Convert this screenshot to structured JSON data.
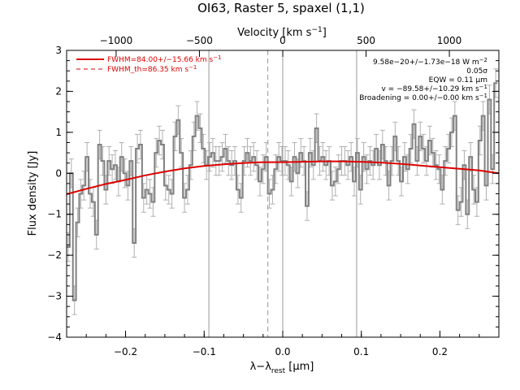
{
  "chart_data": {
    "type": "line",
    "title": "OI63, Raster 5, spaxel (1,1)",
    "xlabel": "λ−λ",
    "xlabel_sub": "rest",
    "xlabel_unit": " [μm]",
    "ylabel": "Flux density [Jy]",
    "top_axis_label": "Velocity [km s",
    "top_axis_label_sup": "−1",
    "top_axis_label_end": "]",
    "xlim": [
      -0.275,
      0.275
    ],
    "ylim": [
      -4,
      3
    ],
    "x_ticks": [
      {
        "value": -0.2,
        "label": "−0.2"
      },
      {
        "value": -0.1,
        "label": "−0.1"
      },
      {
        "value": 0.0,
        "label": "0.0"
      },
      {
        "value": 0.1,
        "label": "0.1"
      },
      {
        "value": 0.2,
        "label": "0.2"
      }
    ],
    "y_ticks": [
      {
        "value": -4,
        "label": "−4"
      },
      {
        "value": -3,
        "label": "−3"
      },
      {
        "value": -2,
        "label": "−2"
      },
      {
        "value": -1,
        "label": "−1"
      },
      {
        "value": 0,
        "label": "0"
      },
      {
        "value": 1,
        "label": "1"
      },
      {
        "value": 2,
        "label": "2"
      },
      {
        "value": 3,
        "label": "3"
      }
    ],
    "velocity_ticks": [
      {
        "x": -0.212,
        "label": "−1000"
      },
      {
        "x": -0.106,
        "label": "−500"
      },
      {
        "x": 0.0,
        "label": "0"
      },
      {
        "x": 0.106,
        "label": "500"
      },
      {
        "x": 0.212,
        "label": "1000"
      }
    ],
    "vertical_lines": [
      {
        "x": -0.094,
        "style": "solid",
        "color": "#999999"
      },
      {
        "x": -0.019,
        "style": "dashed",
        "color": "#999999"
      },
      {
        "x": 0.0,
        "style": "solid",
        "color": "#999999"
      },
      {
        "x": 0.094,
        "style": "solid",
        "color": "#999999"
      }
    ],
    "series": [
      {
        "kind": "step",
        "color": "#808080",
        "x": [
          -0.273,
          -0.269,
          -0.265,
          -0.261,
          -0.257,
          -0.253,
          -0.249,
          -0.245,
          -0.241,
          -0.237,
          -0.233,
          -0.229,
          -0.225,
          -0.221,
          -0.217,
          -0.213,
          -0.209,
          -0.205,
          -0.201,
          -0.197,
          -0.193,
          -0.189,
          -0.185,
          -0.181,
          -0.177,
          -0.173,
          -0.169,
          -0.165,
          -0.161,
          -0.157,
          -0.153,
          -0.149,
          -0.145,
          -0.141,
          -0.137,
          -0.133,
          -0.129,
          -0.125,
          -0.121,
          -0.117,
          -0.113,
          -0.109,
          -0.105,
          -0.101,
          -0.097,
          -0.093,
          -0.089,
          -0.085,
          -0.081,
          -0.077,
          -0.073,
          -0.069,
          -0.065,
          -0.061,
          -0.057,
          -0.053,
          -0.049,
          -0.045,
          -0.041,
          -0.037,
          -0.033,
          -0.029,
          -0.025,
          -0.021,
          -0.017,
          -0.013,
          -0.009,
          -0.005,
          -0.001,
          0.003,
          0.007,
          0.011,
          0.015,
          0.019,
          0.023,
          0.027,
          0.031,
          0.035,
          0.039,
          0.043,
          0.047,
          0.051,
          0.055,
          0.059,
          0.063,
          0.067,
          0.071,
          0.075,
          0.079,
          0.083,
          0.087,
          0.091,
          0.095,
          0.099,
          0.103,
          0.107,
          0.111,
          0.115,
          0.119,
          0.123,
          0.127,
          0.131,
          0.135,
          0.139,
          0.143,
          0.147,
          0.151,
          0.155,
          0.159,
          0.163,
          0.167,
          0.171,
          0.175,
          0.179,
          0.183,
          0.187,
          0.191,
          0.195,
          0.199,
          0.203,
          0.207,
          0.211,
          0.215,
          0.219,
          0.223,
          0.227,
          0.231,
          0.235,
          0.239,
          0.243,
          0.247,
          0.251,
          0.255,
          0.259,
          0.263,
          0.267,
          0.271
        ],
        "y": [
          -1.8,
          0.0,
          -3.1,
          -1.2,
          -0.5,
          -0.3,
          0.4,
          -0.5,
          -0.7,
          -1.5,
          0.7,
          0.3,
          -0.4,
          0.3,
          0.1,
          0.2,
          -0.2,
          0.4,
          0.0,
          -0.3,
          0.3,
          -1.7,
          0.6,
          0.7,
          -0.6,
          -0.4,
          -0.5,
          -0.7,
          0.5,
          0.8,
          0.7,
          -0.3,
          -0.4,
          -0.5,
          0.9,
          1.3,
          0.5,
          -0.6,
          -0.4,
          0.2,
          0.9,
          1.4,
          1.1,
          0.6,
          0.2,
          0.4,
          0.5,
          0.3,
          0.3,
          0.4,
          0.6,
          0.3,
          0.2,
          0.3,
          -0.4,
          -0.6,
          0.3,
          0.5,
          0.3,
          0.4,
          0.2,
          -0.2,
          0.1,
          0.4,
          -0.5,
          -0.4,
          0.1,
          0.4,
          0.3,
          0.3,
          0.2,
          -0.2,
          0.4,
          0.0,
          0.5,
          0.3,
          -0.8,
          0.5,
          0.2,
          1.1,
          0.3,
          0.4,
          0.2,
          0.3,
          -0.3,
          -0.2,
          0.1,
          0.3,
          0.3,
          0.2,
          0.4,
          -0.2,
          0.5,
          -0.4,
          0.4,
          0.1,
          0.3,
          0.2,
          0.6,
          0.2,
          0.7,
          0.3,
          -0.3,
          0.3,
          0.9,
          0.3,
          -0.2,
          0.4,
          0.1,
          0.6,
          1.2,
          0.3,
          0.9,
          0.6,
          0.3,
          0.8,
          0.5,
          0.2,
          0.1,
          -0.4,
          0.3,
          0.6,
          1.0,
          1.4,
          -0.9,
          -0.7,
          0.2,
          -1.0,
          0.4,
          -0.4,
          -0.7,
          0.8,
          1.4,
          -0.3,
          1.8,
          0.1,
          2.2
        ],
        "error": 0.35
      },
      {
        "kind": "fit",
        "name": "FWHM=84.00+/−15.66 km s",
        "name_sup": "−1",
        "color": "#dd0000",
        "x": [
          -0.275,
          -0.25,
          -0.225,
          -0.2,
          -0.175,
          -0.15,
          -0.125,
          -0.1,
          -0.075,
          -0.05,
          -0.025,
          0.0,
          0.025,
          0.05,
          0.075,
          0.1,
          0.125,
          0.15,
          0.175,
          0.2,
          0.225,
          0.25,
          0.275
        ],
        "y": [
          -0.51,
          -0.38,
          -0.26,
          -0.16,
          -0.05,
          0.04,
          0.12,
          0.18,
          0.22,
          0.25,
          0.27,
          0.27,
          0.28,
          0.29,
          0.29,
          0.28,
          0.26,
          0.23,
          0.19,
          0.15,
          0.11,
          0.07,
          0.0
        ]
      }
    ],
    "legend": [
      {
        "label": "FWHM=84.00+/−15.66 km s",
        "sup": "−1",
        "style": "solid",
        "color": "#dd0000"
      },
      {
        "label": "FWHM_th=86.35 km s",
        "sup": "−1",
        "style": "dashed",
        "color": "#dd0000"
      }
    ],
    "legend_position": "top-left",
    "annotations": [
      {
        "text": "9.58e−20+/−1.73e−18 W m",
        "sup": "−2"
      },
      {
        "text": "0.05σ",
        "sup": ""
      },
      {
        "text": "EQW = 0.11 μm",
        "sup": ""
      },
      {
        "text": "v = −89.58+/−10.29 km s",
        "sup": "−1"
      },
      {
        "text": "Broadening = 0.00+/−0.00 km s",
        "sup": "−1"
      }
    ],
    "annotations_position": "top-right",
    "grid": false
  }
}
